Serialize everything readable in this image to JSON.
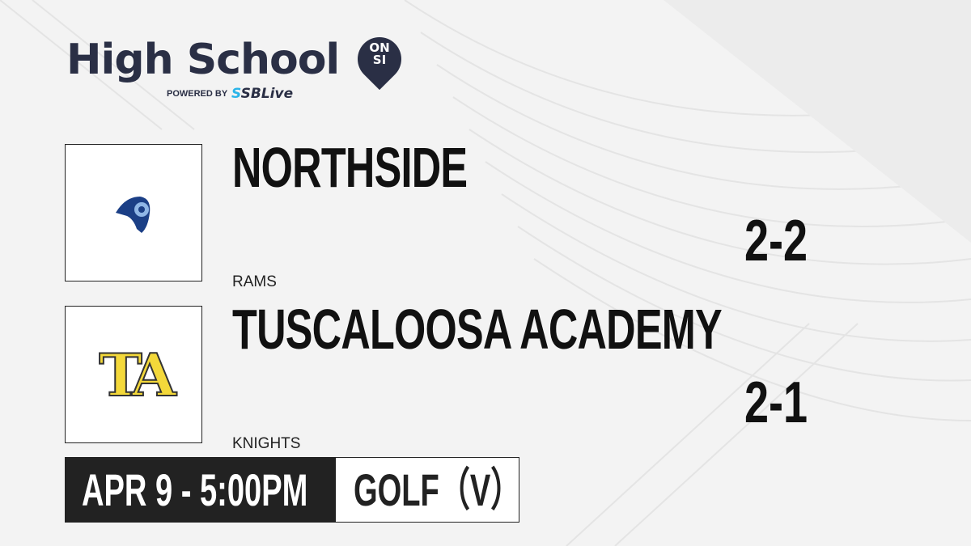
{
  "brand": {
    "title": "High School",
    "badge_top": "ON",
    "badge_bottom": "SI",
    "powered_by": "POWERED BY",
    "partner_prefix": "S",
    "partner": "SBLive"
  },
  "teams": [
    {
      "name": "NORTHSIDE",
      "mascot": "RAMS",
      "score": "2-2",
      "logo": "ram-logo"
    },
    {
      "name": "TUSCALOOSA ACADEMY",
      "mascot": "KNIGHTS",
      "score": "2-1",
      "logo_text": "TA"
    }
  ],
  "game": {
    "datetime": "APR 9 - 5:00PM",
    "sport": "GOLF（V）"
  },
  "colors": {
    "brand": "#2a2f45",
    "accent": "#2bb4e8",
    "ta_yellow": "#f3d83a",
    "ram_blue": "#1b3f86"
  }
}
